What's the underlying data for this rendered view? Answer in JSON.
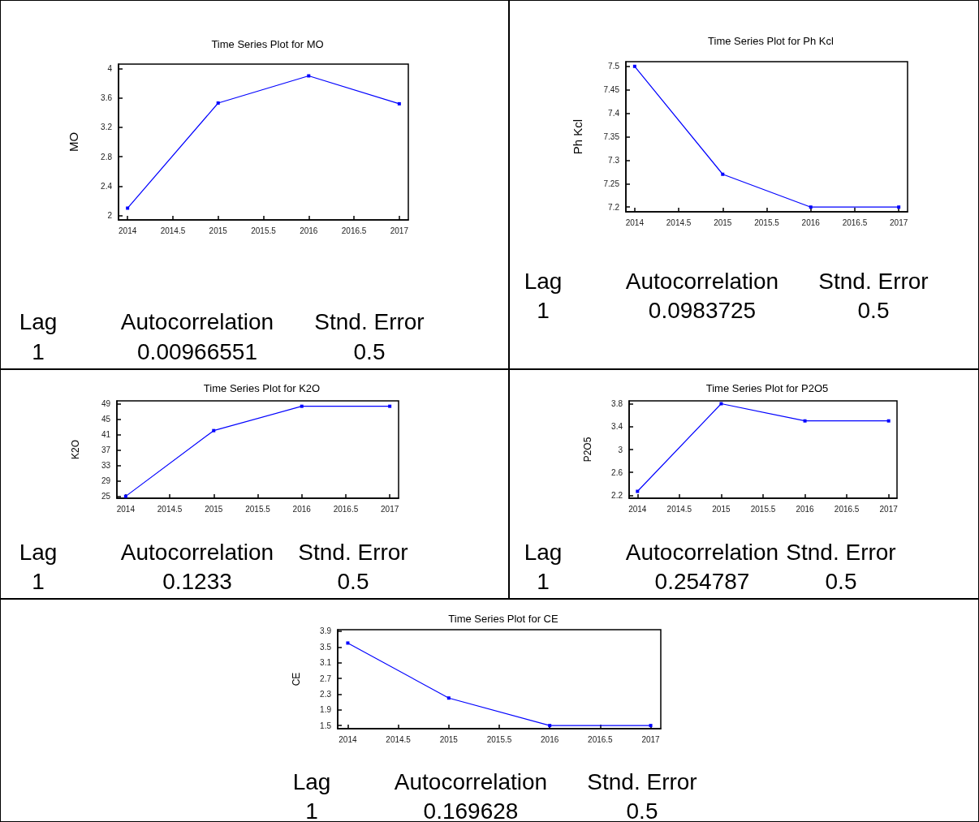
{
  "chart_data": [
    {
      "type": "line",
      "title": "Time Series Plot for MO",
      "ylabel": "MO",
      "x": [
        2014,
        2015,
        2016,
        2017
      ],
      "series": [
        {
          "color": "#0000ff",
          "values": [
            2.1,
            3.53,
            3.9,
            3.52
          ]
        }
      ],
      "xlim": [
        2013.9,
        2017.1
      ],
      "xticks": [
        2014,
        2014.5,
        2015,
        2015.5,
        2016,
        2016.5,
        2017
      ],
      "ylim": [
        1.94,
        4.06
      ],
      "yticks": [
        2,
        2.4,
        2.8,
        3.2,
        3.6,
        4
      ],
      "marker": "square",
      "line_style": "solid",
      "grid": false,
      "annotations": [
        "Lag",
        "Autocorrelation",
        "Stnd. Error",
        "1",
        "0.00966551",
        "0.5"
      ]
    },
    {
      "type": "line",
      "title": "Time Series Plot for Ph Kcl",
      "ylabel": "Ph Kcl",
      "x": [
        2014,
        2015,
        2016,
        2017
      ],
      "series": [
        {
          "color": "#0000ff",
          "values": [
            7.5,
            7.27,
            7.2,
            7.2
          ]
        }
      ],
      "xlim": [
        2013.9,
        2017.1
      ],
      "xticks": [
        2014,
        2014.5,
        2015,
        2015.5,
        2016,
        2016.5,
        2017
      ],
      "ylim": [
        7.19,
        7.51
      ],
      "yticks": [
        7.2,
        7.25,
        7.3,
        7.35,
        7.4,
        7.45,
        7.5
      ],
      "marker": "square",
      "line_style": "solid",
      "grid": false,
      "annotations": [
        "Lag",
        "Autocorrelation",
        "Stnd. Error",
        "1",
        "0.0983725",
        "0.5"
      ]
    },
    {
      "type": "line",
      "title": "Time Series Plot for K2O",
      "ylabel": "K2O",
      "x": [
        2014,
        2015,
        2016,
        2017
      ],
      "series": [
        {
          "color": "#0000ff",
          "values": [
            25,
            42,
            48.3,
            48.3
          ]
        }
      ],
      "xlim": [
        2013.9,
        2017.1
      ],
      "xticks": [
        2014,
        2014.5,
        2015,
        2015.5,
        2016,
        2016.5,
        2017
      ],
      "ylim": [
        24.5,
        49.7
      ],
      "yticks": [
        25,
        29,
        33,
        37,
        41,
        45,
        49
      ],
      "marker": "square",
      "line_style": "solid",
      "grid": false,
      "annotations": [
        "Lag",
        "Autocorrelation",
        "Stnd. Error",
        "1",
        "0.1233",
        "0.5"
      ]
    },
    {
      "type": "line",
      "title": "Time Series Plot for P2O5",
      "ylabel": "P2O5",
      "x": [
        2014,
        2015,
        2016,
        2017
      ],
      "series": [
        {
          "color": "#0000ff",
          "values": [
            2.27,
            3.8,
            3.5,
            3.5
          ]
        }
      ],
      "xlim": [
        2013.9,
        2017.1
      ],
      "xticks": [
        2014,
        2014.5,
        2015,
        2015.5,
        2016,
        2016.5,
        2017
      ],
      "ylim": [
        2.15,
        3.85
      ],
      "yticks": [
        2.2,
        2.6,
        3,
        3.4,
        3.8
      ],
      "marker": "square",
      "line_style": "solid",
      "grid": false,
      "annotations": [
        "Lag",
        "Autocorrelation",
        "Stnd. Error",
        "1",
        "0.254787",
        "0.5"
      ]
    },
    {
      "type": "line",
      "title": "Time Series Plot for CE",
      "ylabel": "CE",
      "x": [
        2014,
        2015,
        2016,
        2017
      ],
      "series": [
        {
          "color": "#0000ff",
          "values": [
            3.6,
            2.2,
            1.5,
            1.5
          ]
        }
      ],
      "xlim": [
        2013.9,
        2017.1
      ],
      "xticks": [
        2014,
        2014.5,
        2015,
        2015.5,
        2016,
        2016.5,
        2017
      ],
      "ylim": [
        1.42,
        3.94
      ],
      "yticks": [
        1.5,
        1.9,
        2.3,
        2.7,
        3.1,
        3.5,
        3.9
      ],
      "marker": "square",
      "line_style": "solid",
      "grid": false,
      "annotations": [
        "Lag",
        "Autocorrelation",
        "Stnd. Error",
        "1",
        "0.169628",
        "0.5"
      ]
    }
  ]
}
